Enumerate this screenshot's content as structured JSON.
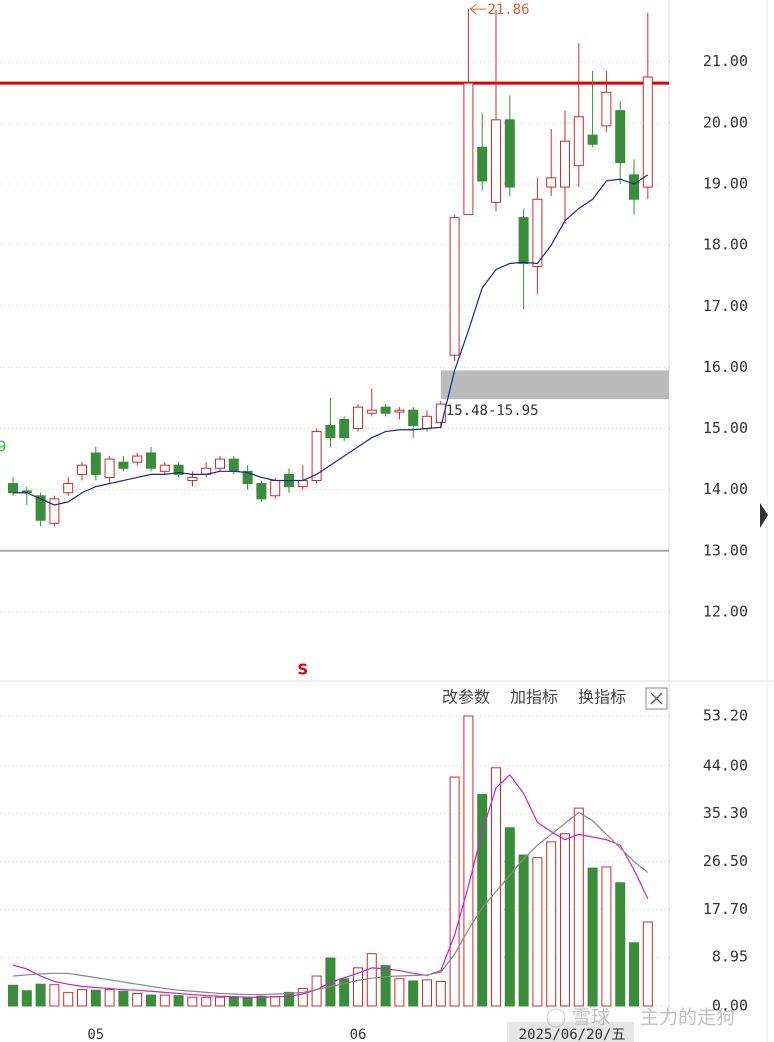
{
  "chart_data": [
    {
      "type": "candlestick",
      "open": [
        14.1,
        13.98,
        13.9,
        13.45,
        13.95,
        14.25,
        14.6,
        14.2,
        14.45,
        14.45,
        14.6,
        14.3,
        14.4,
        14.15,
        14.25,
        14.35,
        14.5,
        14.3,
        14.1,
        13.9,
        14.25,
        14.05,
        14.15,
        15.05,
        15.15,
        15.0,
        15.25,
        15.35,
        15.27,
        15.3,
        15.0,
        15.1,
        16.2,
        18.5,
        19.6,
        18.7,
        20.05,
        18.45,
        17.65,
        18.95,
        18.95,
        19.3,
        19.8,
        19.95,
        20.2,
        19.15,
        18.95
      ],
      "high": [
        14.2,
        14.05,
        13.95,
        13.9,
        14.2,
        14.45,
        14.7,
        14.55,
        14.55,
        14.6,
        14.7,
        14.45,
        14.45,
        14.3,
        14.45,
        14.55,
        14.55,
        14.4,
        14.15,
        14.2,
        14.35,
        14.4,
        15.0,
        15.5,
        15.2,
        15.4,
        15.65,
        15.4,
        15.35,
        15.35,
        15.3,
        15.45,
        18.5,
        21.86,
        20.15,
        21.85,
        20.45,
        18.6,
        19.1,
        19.9,
        20.2,
        21.3,
        20.85,
        20.85,
        20.35,
        19.4,
        21.8
      ],
      "low": [
        13.9,
        13.75,
        13.4,
        13.4,
        13.9,
        14.15,
        14.15,
        14.1,
        14.3,
        14.4,
        14.3,
        14.25,
        14.2,
        14.05,
        14.2,
        14.3,
        14.25,
        14.0,
        13.8,
        13.85,
        13.95,
        14.0,
        14.1,
        14.7,
        14.8,
        14.95,
        15.2,
        15.2,
        15.15,
        14.85,
        14.95,
        15.0,
        16.1,
        18.5,
        18.9,
        18.55,
        18.8,
        16.95,
        17.2,
        18.8,
        18.35,
        18.95,
        19.6,
        19.85,
        19.0,
        18.5,
        18.75
      ],
      "close": [
        13.95,
        13.95,
        13.5,
        13.85,
        14.1,
        14.4,
        14.25,
        14.5,
        14.35,
        14.55,
        14.35,
        14.4,
        14.25,
        14.2,
        14.35,
        14.5,
        14.3,
        14.1,
        13.85,
        14.15,
        14.05,
        14.15,
        14.95,
        14.85,
        14.85,
        15.35,
        15.3,
        15.25,
        15.3,
        15.05,
        15.2,
        15.4,
        18.45,
        20.65,
        19.05,
        20.05,
        18.95,
        17.7,
        18.75,
        19.1,
        19.7,
        20.1,
        19.65,
        20.5,
        19.35,
        18.75,
        20.75
      ],
      "color_up": "#d42a2a",
      "color_down": "#3a8d3a",
      "ma": {
        "color": "#1a2a8a",
        "values": [
          13.95,
          13.95,
          13.85,
          13.75,
          13.8,
          13.95,
          14.05,
          14.1,
          14.15,
          14.2,
          14.25,
          14.25,
          14.28,
          14.25,
          14.25,
          14.3,
          14.3,
          14.28,
          14.2,
          14.15,
          14.15,
          14.15,
          14.25,
          14.4,
          14.55,
          14.7,
          14.85,
          14.95,
          14.98,
          14.98,
          15.0,
          15.02,
          15.95,
          16.6,
          17.3,
          17.6,
          17.7,
          17.72,
          17.7,
          18.0,
          18.4,
          18.6,
          18.75,
          19.05,
          19.08,
          19.0,
          19.15
        ]
      },
      "ylim": [
        10.87,
        22.01
      ],
      "yticks": [
        {
          "value": 12,
          "label": "12.00"
        },
        {
          "value": 13,
          "label": "13.00"
        },
        {
          "value": 14,
          "label": "14.00"
        },
        {
          "value": 15,
          "label": "15.00"
        },
        {
          "value": 16,
          "label": "16.00"
        },
        {
          "value": 17,
          "label": "17.00"
        },
        {
          "value": 18,
          "label": "18.00"
        },
        {
          "value": 19,
          "label": "19.00"
        },
        {
          "value": 20,
          "label": "20.00"
        },
        {
          "value": 21,
          "label": "21.00"
        }
      ],
      "grid": true,
      "hlines": [
        {
          "value": 20.65,
          "color": "#e00000"
        },
        {
          "value": 13.0,
          "color": "#aaaaaa"
        }
      ],
      "high_label": 21.86,
      "range_box": {
        "low": 15.48,
        "high": 15.95,
        "label": "15.48-15.95",
        "color": "#bbbbbb"
      },
      "signal": {
        "text": "S",
        "index": 21,
        "color": "#e00000"
      },
      "edge_label": {
        "text": "9",
        "color": "#22cc22"
      }
    },
    {
      "type": "bar",
      "toolbar": [
        "改参数",
        "加指标",
        "换指标"
      ],
      "categories": [
        null,
        null,
        null,
        null,
        null,
        null,
        "05",
        null,
        null,
        null,
        null,
        null,
        null,
        null,
        null,
        null,
        null,
        null,
        null,
        null,
        null,
        null,
        null,
        null,
        null,
        "06",
        null,
        null,
        null,
        null,
        null,
        null,
        null,
        null,
        null,
        null,
        null,
        null,
        null,
        null,
        null,
        null,
        null,
        null,
        null,
        null,
        null
      ],
      "values": [
        3.8,
        2.8,
        4.0,
        3.9,
        2.5,
        3.0,
        2.9,
        3.0,
        2.7,
        2.3,
        2.0,
        2.0,
        1.9,
        1.6,
        1.6,
        1.6,
        1.7,
        1.5,
        1.8,
        1.7,
        2.5,
        3.2,
        5.5,
        8.8,
        5.0,
        7.0,
        9.6,
        7.4,
        5.0,
        4.6,
        4.8,
        4.5,
        42.0,
        53.2,
        38.8,
        43.7,
        32.7,
        27.7,
        27.2,
        30.1,
        31.6,
        36.3,
        25.3,
        25.5,
        22.6,
        11.6,
        15.4
      ],
      "ma_lines": [
        {
          "color": "#d020d0",
          "values": [
            7.5,
            6.8,
            5.5,
            4.5,
            4.0,
            3.6,
            3.4,
            3.2,
            3.0,
            2.9,
            2.7,
            2.5,
            2.3,
            2.1,
            1.9,
            1.8,
            1.7,
            1.6,
            1.6,
            1.7,
            1.8,
            2.2,
            3.0,
            4.3,
            5.2,
            6.0,
            7.0,
            6.8,
            6.5,
            6.0,
            5.6,
            6.5,
            13.0,
            22.0,
            32.0,
            40.0,
            42.4,
            39.0,
            33.7,
            32.0,
            30.5,
            31.5,
            31.0,
            30.5,
            29.5,
            25.0,
            19.7
          ]
        },
        {
          "color": "#888888",
          "values": [
            5.5,
            5.7,
            5.9,
            6.0,
            6.0,
            5.6,
            5.2,
            4.8,
            4.4,
            4.0,
            3.6,
            3.2,
            2.9,
            2.7,
            2.5,
            2.3,
            2.2,
            2.1,
            2.1,
            2.2,
            2.3,
            2.5,
            3.0,
            3.6,
            4.1,
            4.7,
            5.1,
            5.4,
            5.5,
            5.6,
            5.7,
            6.2,
            9.5,
            14.0,
            18.0,
            21.0,
            24.0,
            27.0,
            29.5,
            31.5,
            33.5,
            35.5,
            34.0,
            31.5,
            29.0,
            26.5,
            24.5
          ]
        }
      ],
      "ylim": [
        0,
        53.2
      ],
      "yticks": [
        {
          "value": 0,
          "label": "0.00"
        },
        {
          "value": 8.95,
          "label": "8.95"
        },
        {
          "value": 17.7,
          "label": "17.70"
        },
        {
          "value": 26.5,
          "label": "26.50"
        },
        {
          "value": 35.3,
          "label": "35.30"
        },
        {
          "value": 44,
          "label": "44.00"
        },
        {
          "value": 53.2,
          "label": "53.20"
        }
      ],
      "grid": true,
      "date_label": "2025/06/20/五",
      "watermark": [
        "雪球",
        "主力的走狗"
      ]
    }
  ]
}
